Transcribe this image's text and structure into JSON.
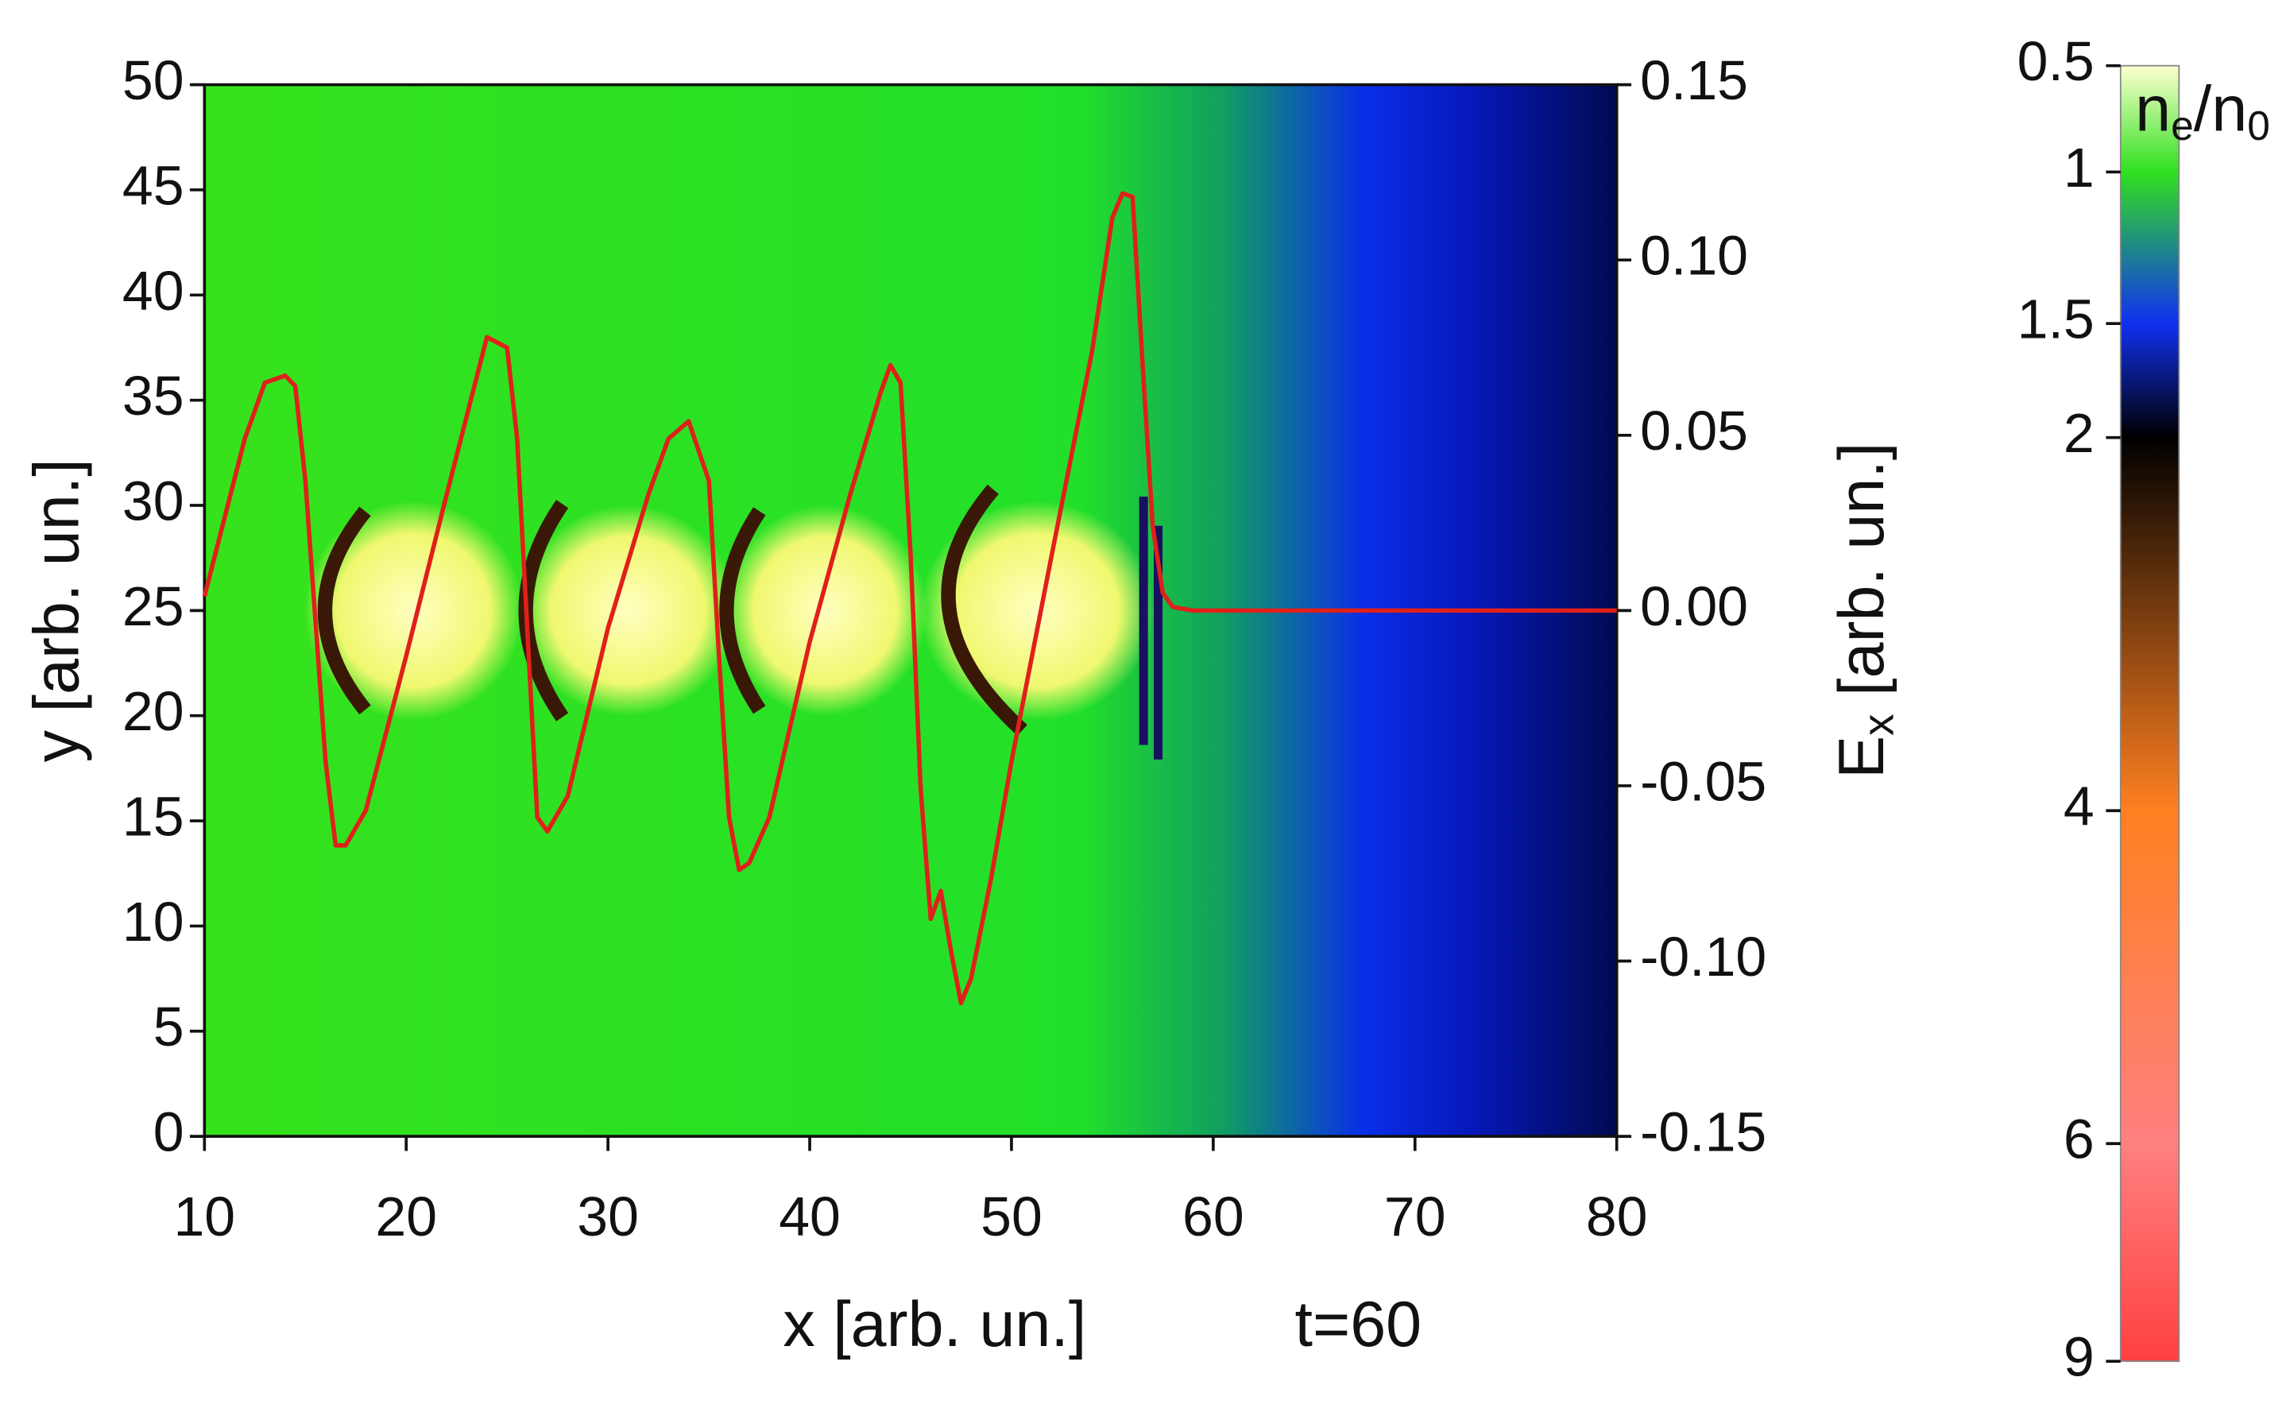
{
  "chart_data": {
    "type": "line",
    "x_label": "x [arb. un.]",
    "y_label": "y [arb. un.]",
    "y2_label": [
      "E",
      "x",
      " [arb. un.]"
    ],
    "annotation": "t=60",
    "xlim": [
      10,
      80
    ],
    "xticks": [
      10,
      20,
      30,
      40,
      50,
      60,
      70,
      80
    ],
    "ylim": [
      0,
      50
    ],
    "yticks": [
      0,
      5,
      10,
      15,
      20,
      25,
      30,
      35,
      40,
      45,
      50
    ],
    "y2lim": [
      -0.15,
      0.15
    ],
    "y2ticks": [
      -0.15,
      {
        "value": -0.1,
        "label": "-0.10"
      },
      -0.05,
      {
        "value": 0,
        "label": "0.00"
      },
      0.05,
      {
        "value": 0.1,
        "label": "0.10"
      },
      0.15
    ],
    "series": [
      {
        "color": "#e0201a",
        "axis": "y2",
        "x": [
          10,
          12,
          13,
          14,
          14.5,
          15,
          16,
          16.5,
          17,
          18,
          20,
          22,
          24,
          25,
          25.5,
          26,
          26.5,
          27,
          28,
          30,
          32,
          33,
          34,
          35,
          35.5,
          36,
          36.5,
          37,
          38,
          40,
          42,
          43.5,
          44,
          44.5,
          45,
          45.5,
          46,
          46.5,
          47,
          47.5,
          48,
          49,
          50,
          52,
          54,
          55,
          55.5,
          56,
          56.5,
          57,
          57.5,
          58,
          59,
          80
        ],
        "values": [
          0.004,
          0.049,
          0.065,
          0.067,
          0.064,
          0.037,
          -0.043,
          -0.067,
          -0.067,
          -0.057,
          -0.013,
          0.033,
          0.078,
          0.075,
          0.049,
          -0.005,
          -0.059,
          -0.063,
          -0.053,
          -0.005,
          0.033,
          0.049,
          0.054,
          0.037,
          -0.013,
          -0.059,
          -0.074,
          -0.072,
          -0.059,
          -0.009,
          0.033,
          0.062,
          0.07,
          0.065,
          0.016,
          -0.051,
          -0.088,
          -0.08,
          -0.097,
          -0.112,
          -0.105,
          -0.076,
          -0.043,
          0.016,
          0.074,
          0.112,
          0.119,
          0.118,
          0.07,
          0.024,
          0.005,
          0.001,
          0,
          0
        ]
      }
    ],
    "colorbar": {
      "label": [
        "n",
        "e",
        "/n",
        "0"
      ],
      "ticks": [
        0.5,
        1,
        1.5,
        2,
        4,
        6,
        9
      ],
      "colors": [
        "#ffffd0",
        "#30e020",
        "#1030f0",
        "#000000",
        "#ff8020",
        "#ff8080",
        "#ff4040"
      ]
    }
  }
}
